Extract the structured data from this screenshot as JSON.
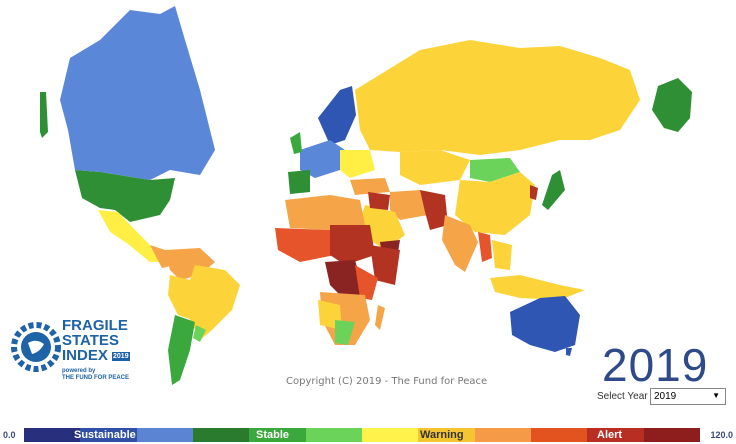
{
  "copyright": "Copyright (C) 2019 - The Fund for Peace",
  "year_display": "2019",
  "select": {
    "label": "Select Year",
    "value": "2019"
  },
  "logo": {
    "line1": "FRAGILE",
    "line2": "STATES",
    "line3": "INDEX",
    "badge": "2019",
    "powered": "powered by",
    "org": "THE FUND FOR PEACE"
  },
  "scale": {
    "min": "0.0",
    "max": "120.0",
    "categories": [
      "Sustainable",
      "Stable",
      "Warning",
      "Alert"
    ],
    "colors": [
      "#28307e",
      "#3050a8",
      "#5b84d2",
      "#2a7b2e",
      "#3aa83c",
      "#6bd35a",
      "#fff24a",
      "#f4c431",
      "#f59a46",
      "#e2531f",
      "#b82e22",
      "#8e1e1e"
    ]
  },
  "colors": {
    "sustainable": "#5a87d8",
    "sustainable_dark": "#2e56b2",
    "stable": "#2f8f35",
    "stable_light": "#5fcf56",
    "warning_light": "#ffef45",
    "warning": "#fdd33a",
    "warning_orange": "#f5a448",
    "alert": "#e5542a",
    "alert_dark": "#b33323",
    "alert_darkest": "#8a2422"
  }
}
